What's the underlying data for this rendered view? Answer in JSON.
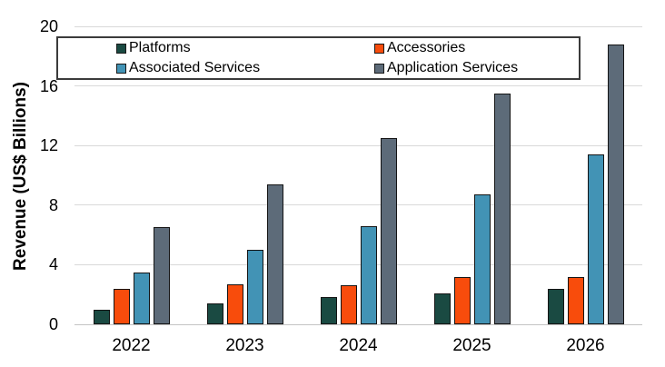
{
  "chart_data": {
    "type": "bar",
    "title": "",
    "xlabel": "",
    "ylabel": "Revenue (US$ Billions)",
    "ylim": [
      0,
      20
    ],
    "yticks": [
      0,
      4,
      8,
      12,
      16,
      20
    ],
    "grid": true,
    "grid_color": "#d9d9d9",
    "axis_line_color": "#c4c4c4",
    "legend_position": "top-inside",
    "categories": [
      "2022",
      "2023",
      "2024",
      "2025",
      "2026"
    ],
    "series": [
      {
        "name": "Platforms",
        "color": "#1a4a42",
        "values": [
          1.0,
          1.4,
          1.8,
          2.1,
          2.4
        ]
      },
      {
        "name": "Accessories",
        "color": "#f84c0c",
        "values": [
          2.4,
          2.7,
          2.6,
          3.2,
          3.2
        ]
      },
      {
        "name": "Associated Services",
        "color": "#4293b5",
        "values": [
          3.5,
          5.0,
          6.6,
          8.7,
          11.4
        ]
      },
      {
        "name": "Application Services",
        "color": "#5d6b79",
        "values": [
          6.5,
          9.4,
          12.5,
          15.5,
          18.8
        ]
      }
    ]
  }
}
